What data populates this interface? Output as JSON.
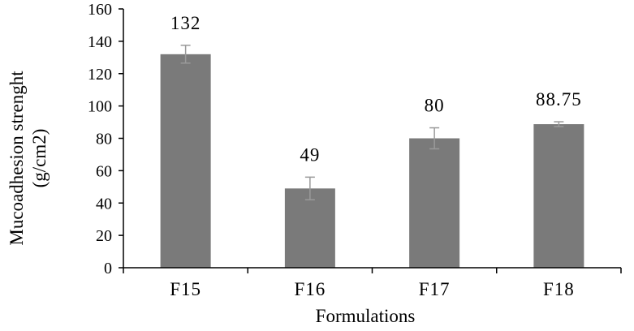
{
  "chart_data": {
    "type": "bar",
    "categories": [
      "F15",
      "F16",
      "F17",
      "F18"
    ],
    "values": [
      132,
      49,
      80,
      88.75
    ],
    "error": [
      5.5,
      7,
      6.5,
      1.5
    ],
    "data_labels": [
      "132",
      "49",
      "80",
      "88.75"
    ],
    "title": "",
    "xlabel": "Formulations",
    "ylabel_lines": [
      "Mucoadhesion  strenght",
      "(g/cm2)"
    ],
    "ylim": [
      0,
      160
    ],
    "yticks": [
      0,
      20,
      40,
      60,
      80,
      100,
      120,
      140,
      160
    ],
    "grid": false,
    "bar_color": "#7a7a7a",
    "error_bar_color": "#9a9a9a"
  }
}
